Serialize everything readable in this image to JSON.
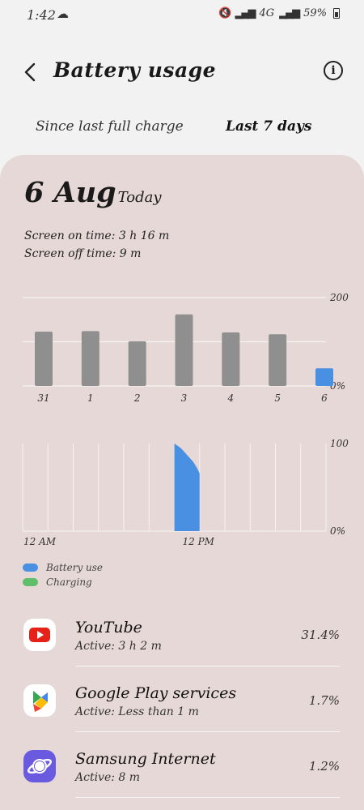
{
  "status_bar": {
    "time": "1:42",
    "network": "4G",
    "battery": "59%"
  },
  "header": {
    "title": "Battery usage",
    "back_icon": "chevron-left-icon",
    "info_icon": "info-icon"
  },
  "tabs": [
    {
      "label": "Since last full charge",
      "selected": false
    },
    {
      "label": "Last 7 days",
      "selected": true
    }
  ],
  "summary": {
    "date": "6 Aug",
    "date_suffix": "Today",
    "screen_on": "Screen on time: 3 h 16 m",
    "screen_off": "Screen off time: 9 m"
  },
  "chart_data": [
    {
      "type": "bar",
      "categories": [
        "31",
        "1",
        "2",
        "3",
        "4",
        "5",
        "6"
      ],
      "values": [
        123,
        124,
        101,
        162,
        121,
        117,
        40
      ],
      "highlight_index": 6,
      "ylim": [
        0,
        200
      ],
      "y_tick_labels": [
        "200",
        "0%"
      ],
      "colors": {
        "default": "#8f8f8f",
        "highlight": "#4a90e2"
      }
    },
    {
      "type": "area",
      "x_labels": [
        "12 AM",
        "12 PM"
      ],
      "x": [
        12.0,
        12.5,
        13.0,
        13.5,
        13.8,
        14.0
      ],
      "values": [
        100,
        95,
        87,
        79,
        72,
        66
      ],
      "xlim": [
        0,
        24
      ],
      "ylim": [
        0,
        100
      ],
      "y_tick_labels": [
        "100",
        "0%"
      ],
      "color": "#4a90e2"
    }
  ],
  "legend": [
    {
      "label": "Battery use",
      "color": "#4a90e2"
    },
    {
      "label": "Charging",
      "color": "#5fbf6a"
    }
  ],
  "apps": [
    {
      "name": "YouTube",
      "active": "Active: 3 h 2 m",
      "percent": "31.4%",
      "icon": "youtube-icon"
    },
    {
      "name": "Google Play services",
      "active": "Active: Less than 1 m",
      "percent": "1.7%",
      "icon": "google-play-services-icon"
    },
    {
      "name": "Samsung Internet",
      "active": "Active: 8 m",
      "percent": "1.2%",
      "icon": "samsung-internet-icon"
    }
  ]
}
